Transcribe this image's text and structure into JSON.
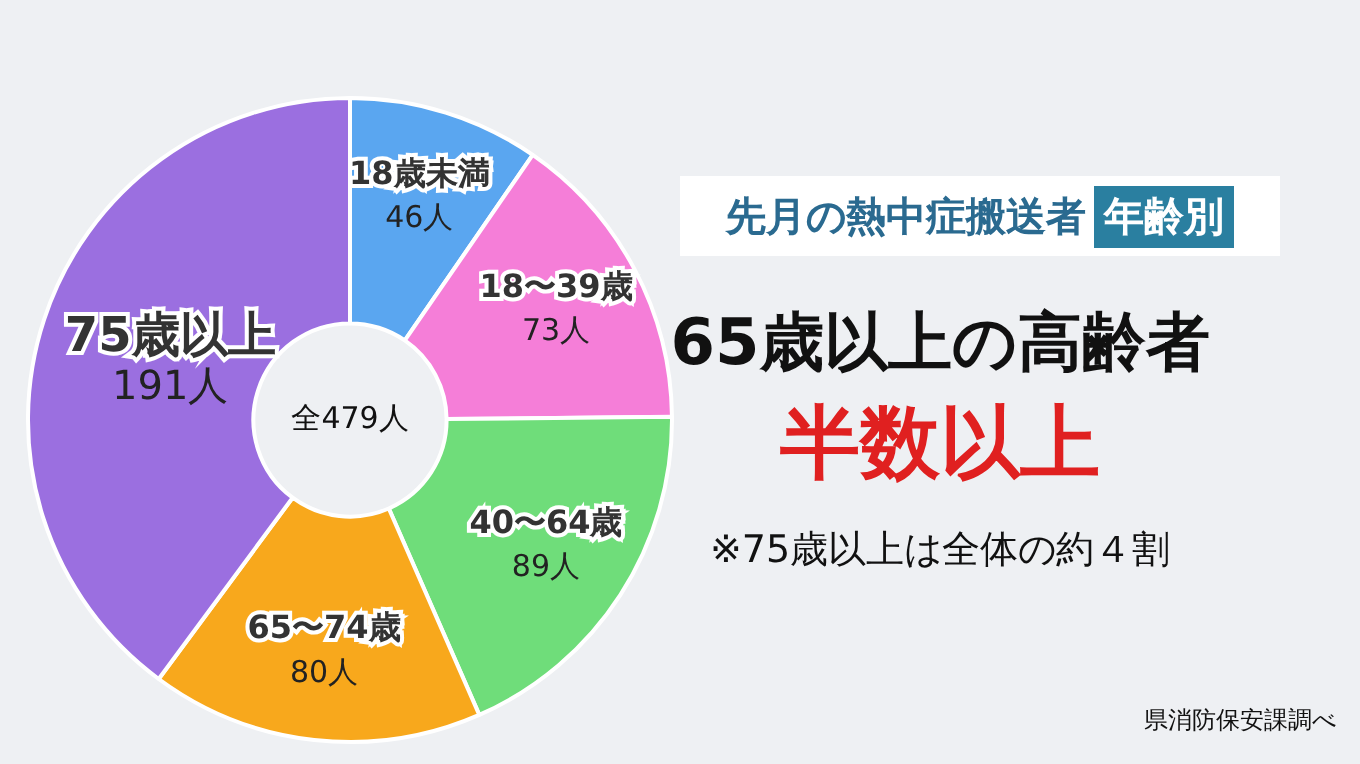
{
  "chart_data": {
    "type": "donut",
    "title": "先月の熱中症搬送者",
    "subtitle": "年齢別",
    "categories": [
      "18歳未満",
      "18〜39歳",
      "40〜64歳",
      "65〜74歳",
      "75歳以上"
    ],
    "values": [
      46,
      73,
      89,
      80,
      191
    ],
    "value_labels": [
      "46人",
      "73人",
      "89人",
      "80人",
      "191人"
    ],
    "colors": [
      "#5aa6f0",
      "#f57ed8",
      "#6fdd7a",
      "#f8a81c",
      "#9b6fe0"
    ],
    "annotations": [
      "全479人",
      "65歳以上の高齢者",
      "半数以上",
      "※75歳以上は全体の約４割",
      "県消防保安課調べ"
    ],
    "legend": false
  }
}
